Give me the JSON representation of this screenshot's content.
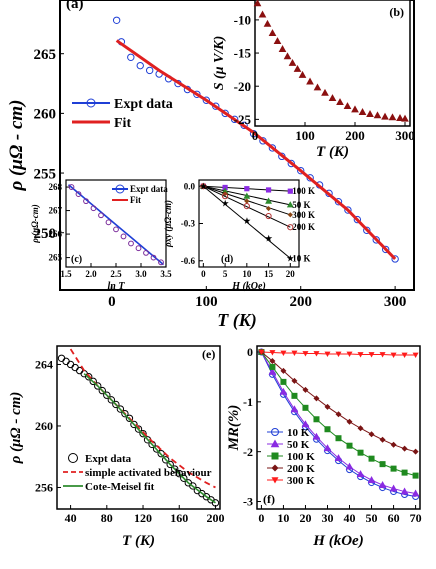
{
  "chart_data": [
    {
      "panel": "(a)",
      "type": "scatter",
      "xlabel": "T (K)",
      "ylabel": "ρ (μΩ - cm)",
      "xlim": [
        -55,
        320
      ],
      "ylim": [
        245.2,
        269.5
      ],
      "xticks": [
        0,
        100,
        200,
        300
      ],
      "yticks": [
        250,
        255,
        260,
        265
      ],
      "legend": {
        "placement": "left-middle",
        "entries": [
          "Expt data",
          "Fit"
        ]
      },
      "series": [
        {
          "name": "Expt data",
          "color": "#1f3fd6",
          "marker": "circle",
          "x": [
            5,
            10,
            20,
            30,
            40,
            50,
            60,
            70,
            80,
            90,
            100,
            110,
            120,
            130,
            140,
            150,
            160,
            170,
            180,
            190,
            200,
            210,
            220,
            230,
            240,
            250,
            260,
            270,
            280,
            290,
            300
          ],
          "y": [
            267.8,
            266.0,
            264.7,
            264.0,
            263.6,
            263.3,
            262.9,
            262.5,
            262.0,
            261.6,
            261.1,
            260.6,
            260.0,
            259.5,
            259.0,
            258.3,
            257.7,
            257.1,
            256.4,
            255.8,
            255.2,
            254.6,
            254.0,
            253.3,
            252.6,
            251.9,
            251.1,
            250.2,
            249.4,
            248.6,
            247.8
          ]
        },
        {
          "name": "Fit",
          "color": "#e02020",
          "marker": "line",
          "x": [
            5,
            50,
            100,
            150,
            200,
            250,
            300
          ],
          "y": [
            266.1,
            263.6,
            261.1,
            258.4,
            255.2,
            251.9,
            247.8
          ]
        }
      ],
      "annotations": [
        {
          "label": "(a)"
        },
        {
          "label": "(b)"
        },
        {
          "label": "(c)"
        },
        {
          "label": "(d)"
        }
      ]
    },
    {
      "panel": "(b)",
      "type": "scatter",
      "xlabel": "T (K)",
      "ylabel": "S (μ V/K)",
      "xlim": [
        0,
        310
      ],
      "ylim": [
        -26,
        -7
      ],
      "xticks": [
        0,
        100,
        200,
        300
      ],
      "yticks": [
        -10,
        -15,
        -20,
        -25
      ],
      "series": [
        {
          "name": "S",
          "color": "#8b1010",
          "marker": "triangle",
          "x": [
            5,
            15,
            25,
            35,
            45,
            55,
            65,
            75,
            85,
            95,
            110,
            125,
            140,
            155,
            170,
            185,
            200,
            215,
            230,
            245,
            260,
            275,
            290,
            300
          ],
          "y": [
            -7.5,
            -9.2,
            -10.6,
            -12.0,
            -13.2,
            -14.4,
            -15.5,
            -16.5,
            -17.4,
            -18.3,
            -19.3,
            -20.2,
            -21.0,
            -21.8,
            -22.4,
            -23.0,
            -23.5,
            -23.9,
            -24.2,
            -24.4,
            -24.6,
            -24.7,
            -24.8,
            -24.9
          ]
        }
      ]
    },
    {
      "panel": "(c)",
      "type": "scatter",
      "xlabel": "ln T",
      "ylabel": "ρ (μΩ-cm)",
      "xlim": [
        1.5,
        3.5
      ],
      "ylim": [
        264.6,
        268.3
      ],
      "xticks": [
        1.5,
        2.0,
        2.5,
        3.0,
        3.5
      ],
      "yticks": [
        265,
        266,
        267,
        268
      ],
      "legend": {
        "placement": "top-right",
        "entries": [
          "Expt data",
          "Fit"
        ]
      },
      "series": [
        {
          "name": "Expt data",
          "color": "#7a2a9a",
          "marker": "circle",
          "x": [
            1.61,
            1.75,
            1.9,
            2.05,
            2.2,
            2.35,
            2.5,
            2.65,
            2.8,
            2.95,
            3.1,
            3.25,
            3.4
          ],
          "y": [
            268.0,
            267.7,
            267.4,
            267.1,
            266.8,
            266.5,
            266.2,
            265.9,
            265.6,
            265.4,
            265.2,
            265.0,
            264.8
          ]
        },
        {
          "name": "Fit",
          "color": "#1f3fd6",
          "marker": "line",
          "x": [
            1.55,
            3.45
          ],
          "y": [
            268.1,
            264.7
          ]
        }
      ]
    },
    {
      "panel": "(d)",
      "type": "scatter",
      "xlabel": "H (kOe)",
      "ylabel": "ρxy (μΩ-cm)",
      "xlim": [
        -1,
        22
      ],
      "ylim": [
        -0.65,
        0.05
      ],
      "xticks": [
        0,
        5,
        10,
        15,
        20
      ],
      "yticks": [
        0.0,
        -0.3,
        -0.6
      ],
      "series": [
        {
          "name": "100 K",
          "color": "#8a2be2",
          "marker": "square",
          "x": [
            0,
            5,
            10,
            15,
            20
          ],
          "y": [
            0,
            -0.01,
            -0.02,
            -0.03,
            -0.04
          ]
        },
        {
          "name": "50 K",
          "color": "#2e8b2e",
          "marker": "triangle",
          "x": [
            0,
            5,
            10,
            15,
            20
          ],
          "y": [
            0,
            -0.04,
            -0.08,
            -0.12,
            -0.15
          ]
        },
        {
          "name": "300 K",
          "color": "#8b4513",
          "marker": "diamond",
          "x": [
            0,
            5,
            10,
            15,
            20
          ],
          "y": [
            0,
            -0.06,
            -0.12,
            -0.18,
            -0.23
          ]
        },
        {
          "name": "200 K",
          "color": "#b03030",
          "marker": "circle",
          "x": [
            0,
            5,
            10,
            15,
            20
          ],
          "y": [
            0,
            -0.08,
            -0.16,
            -0.24,
            -0.33
          ]
        },
        {
          "name": "10 K",
          "color": "#1f3fd6",
          "marker": "star",
          "x": [
            0,
            5,
            10,
            15,
            20
          ],
          "y": [
            0,
            -0.14,
            -0.28,
            -0.42,
            -0.58
          ]
        }
      ]
    },
    {
      "panel": "(e)",
      "type": "scatter",
      "xlabel": "T (K)",
      "ylabel": "ρ (μΩ - cm)",
      "xlim": [
        25,
        205
      ],
      "ylim": [
        254.6,
        265.2
      ],
      "xticks": [
        40,
        80,
        120,
        160,
        200
      ],
      "yticks": [
        256,
        260,
        264
      ],
      "legend": {
        "placement": "bottom-left",
        "entries": [
          "Expt data",
          "simple activated behaviour",
          "Cote-Meisel fit"
        ]
      },
      "series": [
        {
          "name": "Expt data",
          "color": "#000000",
          "marker": "circle",
          "x": [
            30,
            35,
            40,
            45,
            50,
            55,
            60,
            65,
            70,
            75,
            80,
            85,
            90,
            95,
            100,
            105,
            110,
            115,
            120,
            125,
            130,
            135,
            140,
            145,
            150,
            155,
            160,
            165,
            170,
            175,
            180,
            185,
            190,
            195,
            200
          ],
          "y": [
            264.4,
            264.2,
            264.0,
            263.8,
            263.6,
            263.4,
            263.2,
            262.9,
            262.6,
            262.3,
            262.0,
            261.7,
            261.4,
            261.1,
            260.8,
            260.5,
            260.1,
            259.8,
            259.5,
            259.1,
            258.8,
            258.5,
            258.2,
            257.8,
            257.5,
            257.2,
            256.9,
            256.6,
            256.3,
            256.1,
            255.8,
            255.6,
            255.4,
            255.2,
            255.0
          ]
        },
        {
          "name": "simple activated behaviour",
          "color": "#e02020",
          "marker": "dash",
          "x": [
            40,
            55,
            70,
            90,
            110,
            130,
            150,
            170,
            190,
            200
          ],
          "y": [
            265.0,
            263.6,
            262.6,
            261.4,
            260.2,
            259.0,
            257.9,
            257.0,
            256.3,
            256.0
          ]
        },
        {
          "name": "Cote-Meisel fit",
          "color": "#2e8b2e",
          "marker": "line",
          "x": [
            55,
            70,
            90,
            110,
            130,
            150,
            170,
            190,
            200
          ],
          "y": [
            263.4,
            262.6,
            261.4,
            260.1,
            258.8,
            257.5,
            256.3,
            255.4,
            255.0
          ]
        }
      ]
    },
    {
      "panel": "(f)",
      "type": "line",
      "xlabel": "H (kOe)",
      "ylabel": "MR(%)",
      "xlim": [
        -2,
        72
      ],
      "ylim": [
        -3.15,
        0.12
      ],
      "xticks": [
        0,
        10,
        20,
        30,
        40,
        50,
        60,
        70
      ],
      "yticks": [
        0,
        -1,
        -2,
        -3
      ],
      "legend": {
        "placement": "bottom-left",
        "entries": [
          "10 K",
          "50 K",
          "100 K",
          "200 K",
          "300 K"
        ]
      },
      "series": [
        {
          "name": "10 K",
          "color": "#1f3fd6",
          "marker": "circle",
          "x": [
            0,
            5,
            10,
            15,
            20,
            25,
            30,
            35,
            40,
            45,
            50,
            55,
            60,
            65,
            70
          ],
          "y": [
            0,
            -0.45,
            -0.85,
            -1.2,
            -1.5,
            -1.75,
            -1.98,
            -2.18,
            -2.36,
            -2.5,
            -2.62,
            -2.72,
            -2.8,
            -2.86,
            -2.9
          ]
        },
        {
          "name": "50 K",
          "color": "#8a2be2",
          "marker": "triangle",
          "x": [
            0,
            5,
            10,
            15,
            20,
            25,
            30,
            35,
            40,
            45,
            50,
            55,
            60,
            65,
            70
          ],
          "y": [
            0,
            -0.4,
            -0.8,
            -1.15,
            -1.45,
            -1.7,
            -1.93,
            -2.13,
            -2.3,
            -2.45,
            -2.57,
            -2.67,
            -2.74,
            -2.8,
            -2.84
          ]
        },
        {
          "name": "100 K",
          "color": "#1f8a1f",
          "marker": "square",
          "x": [
            0,
            5,
            10,
            15,
            20,
            25,
            30,
            35,
            40,
            45,
            50,
            55,
            60,
            65,
            70
          ],
          "y": [
            0,
            -0.3,
            -0.6,
            -0.88,
            -1.12,
            -1.35,
            -1.55,
            -1.73,
            -1.88,
            -2.02,
            -2.14,
            -2.25,
            -2.34,
            -2.42,
            -2.48
          ]
        },
        {
          "name": "200 K",
          "color": "#7a1414",
          "marker": "diamond",
          "x": [
            0,
            5,
            10,
            15,
            20,
            25,
            30,
            35,
            40,
            45,
            50,
            55,
            60,
            65,
            70
          ],
          "y": [
            0,
            -0.18,
            -0.38,
            -0.58,
            -0.76,
            -0.93,
            -1.1,
            -1.25,
            -1.4,
            -1.53,
            -1.65,
            -1.76,
            -1.86,
            -1.94,
            -2.0
          ]
        },
        {
          "name": "300 K",
          "color": "#ff1a1a",
          "marker": "triangle-down",
          "x": [
            0,
            5,
            10,
            15,
            20,
            25,
            30,
            35,
            40,
            45,
            50,
            55,
            60,
            65,
            70
          ],
          "y": [
            0,
            -0.01,
            -0.02,
            -0.02,
            -0.03,
            -0.03,
            -0.04,
            -0.04,
            -0.04,
            -0.05,
            -0.05,
            -0.05,
            -0.06,
            -0.06,
            -0.06
          ]
        }
      ]
    }
  ]
}
